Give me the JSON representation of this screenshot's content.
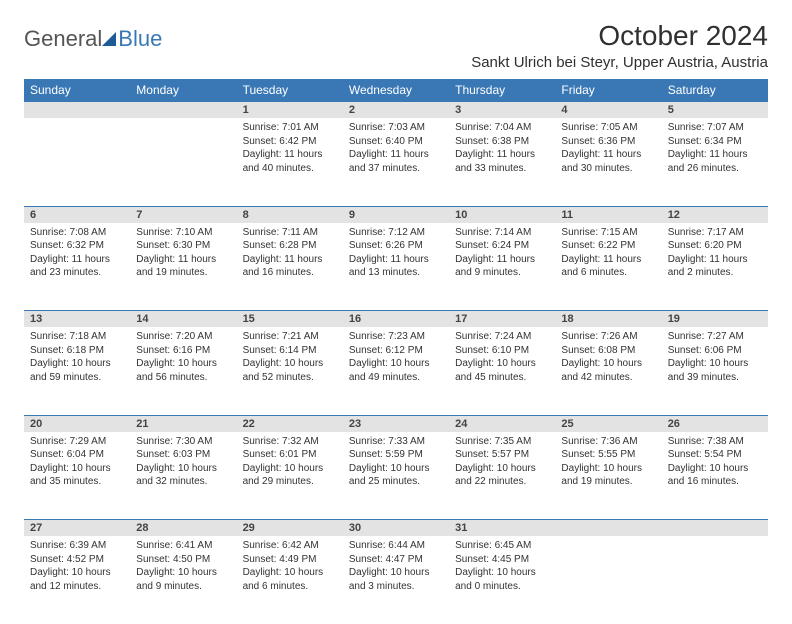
{
  "logo": {
    "text1": "General",
    "text2": "Blue"
  },
  "title": "October 2024",
  "location": "Sankt Ulrich bei Steyr, Upper Austria, Austria",
  "colors": {
    "header_bg": "#3a78b5",
    "header_text": "#ffffff",
    "daynum_bg": "#e3e3e3",
    "row_divider": "#3a78b5",
    "body_text": "#333333",
    "background": "#ffffff"
  },
  "day_headers": [
    "Sunday",
    "Monday",
    "Tuesday",
    "Wednesday",
    "Thursday",
    "Friday",
    "Saturday"
  ],
  "weeks": [
    [
      {
        "num": "",
        "sunrise": "",
        "sunset": "",
        "daylight": ""
      },
      {
        "num": "",
        "sunrise": "",
        "sunset": "",
        "daylight": ""
      },
      {
        "num": "1",
        "sunrise": "Sunrise: 7:01 AM",
        "sunset": "Sunset: 6:42 PM",
        "daylight": "Daylight: 11 hours and 40 minutes."
      },
      {
        "num": "2",
        "sunrise": "Sunrise: 7:03 AM",
        "sunset": "Sunset: 6:40 PM",
        "daylight": "Daylight: 11 hours and 37 minutes."
      },
      {
        "num": "3",
        "sunrise": "Sunrise: 7:04 AM",
        "sunset": "Sunset: 6:38 PM",
        "daylight": "Daylight: 11 hours and 33 minutes."
      },
      {
        "num": "4",
        "sunrise": "Sunrise: 7:05 AM",
        "sunset": "Sunset: 6:36 PM",
        "daylight": "Daylight: 11 hours and 30 minutes."
      },
      {
        "num": "5",
        "sunrise": "Sunrise: 7:07 AM",
        "sunset": "Sunset: 6:34 PM",
        "daylight": "Daylight: 11 hours and 26 minutes."
      }
    ],
    [
      {
        "num": "6",
        "sunrise": "Sunrise: 7:08 AM",
        "sunset": "Sunset: 6:32 PM",
        "daylight": "Daylight: 11 hours and 23 minutes."
      },
      {
        "num": "7",
        "sunrise": "Sunrise: 7:10 AM",
        "sunset": "Sunset: 6:30 PM",
        "daylight": "Daylight: 11 hours and 19 minutes."
      },
      {
        "num": "8",
        "sunrise": "Sunrise: 7:11 AM",
        "sunset": "Sunset: 6:28 PM",
        "daylight": "Daylight: 11 hours and 16 minutes."
      },
      {
        "num": "9",
        "sunrise": "Sunrise: 7:12 AM",
        "sunset": "Sunset: 6:26 PM",
        "daylight": "Daylight: 11 hours and 13 minutes."
      },
      {
        "num": "10",
        "sunrise": "Sunrise: 7:14 AM",
        "sunset": "Sunset: 6:24 PM",
        "daylight": "Daylight: 11 hours and 9 minutes."
      },
      {
        "num": "11",
        "sunrise": "Sunrise: 7:15 AM",
        "sunset": "Sunset: 6:22 PM",
        "daylight": "Daylight: 11 hours and 6 minutes."
      },
      {
        "num": "12",
        "sunrise": "Sunrise: 7:17 AM",
        "sunset": "Sunset: 6:20 PM",
        "daylight": "Daylight: 11 hours and 2 minutes."
      }
    ],
    [
      {
        "num": "13",
        "sunrise": "Sunrise: 7:18 AM",
        "sunset": "Sunset: 6:18 PM",
        "daylight": "Daylight: 10 hours and 59 minutes."
      },
      {
        "num": "14",
        "sunrise": "Sunrise: 7:20 AM",
        "sunset": "Sunset: 6:16 PM",
        "daylight": "Daylight: 10 hours and 56 minutes."
      },
      {
        "num": "15",
        "sunrise": "Sunrise: 7:21 AM",
        "sunset": "Sunset: 6:14 PM",
        "daylight": "Daylight: 10 hours and 52 minutes."
      },
      {
        "num": "16",
        "sunrise": "Sunrise: 7:23 AM",
        "sunset": "Sunset: 6:12 PM",
        "daylight": "Daylight: 10 hours and 49 minutes."
      },
      {
        "num": "17",
        "sunrise": "Sunrise: 7:24 AM",
        "sunset": "Sunset: 6:10 PM",
        "daylight": "Daylight: 10 hours and 45 minutes."
      },
      {
        "num": "18",
        "sunrise": "Sunrise: 7:26 AM",
        "sunset": "Sunset: 6:08 PM",
        "daylight": "Daylight: 10 hours and 42 minutes."
      },
      {
        "num": "19",
        "sunrise": "Sunrise: 7:27 AM",
        "sunset": "Sunset: 6:06 PM",
        "daylight": "Daylight: 10 hours and 39 minutes."
      }
    ],
    [
      {
        "num": "20",
        "sunrise": "Sunrise: 7:29 AM",
        "sunset": "Sunset: 6:04 PM",
        "daylight": "Daylight: 10 hours and 35 minutes."
      },
      {
        "num": "21",
        "sunrise": "Sunrise: 7:30 AM",
        "sunset": "Sunset: 6:03 PM",
        "daylight": "Daylight: 10 hours and 32 minutes."
      },
      {
        "num": "22",
        "sunrise": "Sunrise: 7:32 AM",
        "sunset": "Sunset: 6:01 PM",
        "daylight": "Daylight: 10 hours and 29 minutes."
      },
      {
        "num": "23",
        "sunrise": "Sunrise: 7:33 AM",
        "sunset": "Sunset: 5:59 PM",
        "daylight": "Daylight: 10 hours and 25 minutes."
      },
      {
        "num": "24",
        "sunrise": "Sunrise: 7:35 AM",
        "sunset": "Sunset: 5:57 PM",
        "daylight": "Daylight: 10 hours and 22 minutes."
      },
      {
        "num": "25",
        "sunrise": "Sunrise: 7:36 AM",
        "sunset": "Sunset: 5:55 PM",
        "daylight": "Daylight: 10 hours and 19 minutes."
      },
      {
        "num": "26",
        "sunrise": "Sunrise: 7:38 AM",
        "sunset": "Sunset: 5:54 PM",
        "daylight": "Daylight: 10 hours and 16 minutes."
      }
    ],
    [
      {
        "num": "27",
        "sunrise": "Sunrise: 6:39 AM",
        "sunset": "Sunset: 4:52 PM",
        "daylight": "Daylight: 10 hours and 12 minutes."
      },
      {
        "num": "28",
        "sunrise": "Sunrise: 6:41 AM",
        "sunset": "Sunset: 4:50 PM",
        "daylight": "Daylight: 10 hours and 9 minutes."
      },
      {
        "num": "29",
        "sunrise": "Sunrise: 6:42 AM",
        "sunset": "Sunset: 4:49 PM",
        "daylight": "Daylight: 10 hours and 6 minutes."
      },
      {
        "num": "30",
        "sunrise": "Sunrise: 6:44 AM",
        "sunset": "Sunset: 4:47 PM",
        "daylight": "Daylight: 10 hours and 3 minutes."
      },
      {
        "num": "31",
        "sunrise": "Sunrise: 6:45 AM",
        "sunset": "Sunset: 4:45 PM",
        "daylight": "Daylight: 10 hours and 0 minutes."
      },
      {
        "num": "",
        "sunrise": "",
        "sunset": "",
        "daylight": ""
      },
      {
        "num": "",
        "sunrise": "",
        "sunset": "",
        "daylight": ""
      }
    ]
  ]
}
